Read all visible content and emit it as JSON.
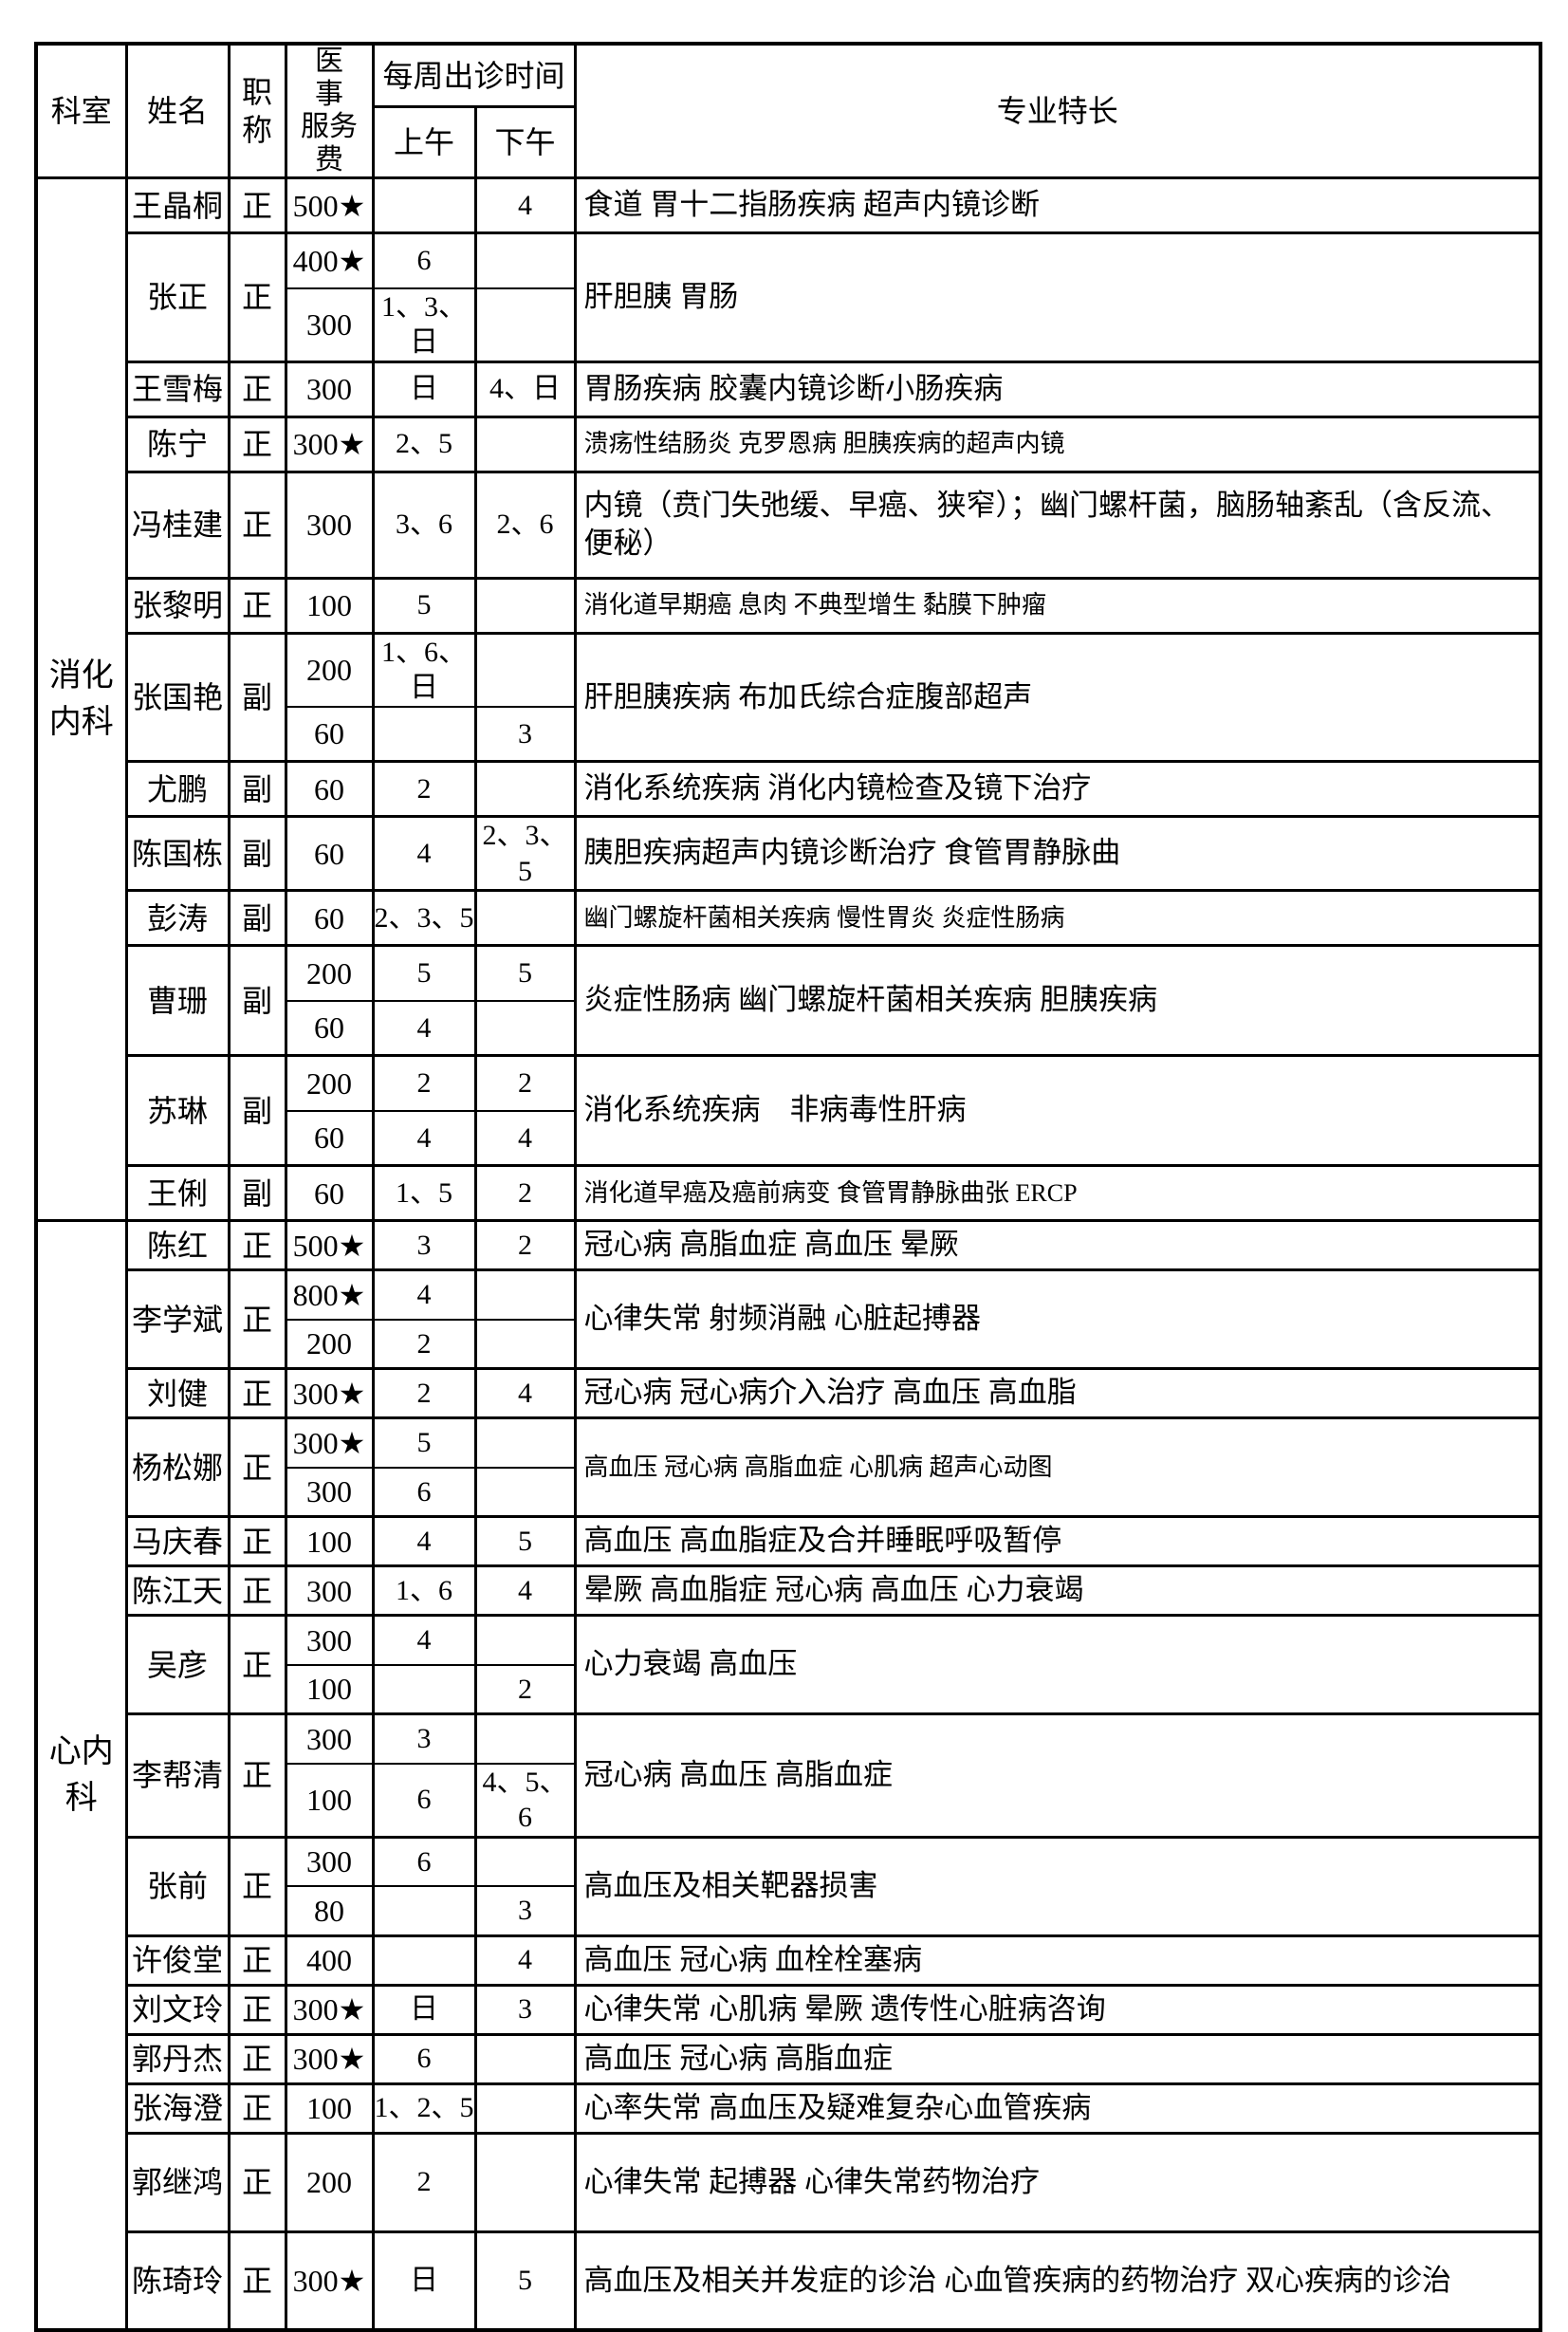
{
  "table": {
    "headers": {
      "department": "科室",
      "name": "姓名",
      "title": "职称",
      "fee_line1": "医 事",
      "fee_line2": "服务费",
      "schedule": "每周出诊时间",
      "morning": "上午",
      "afternoon": "下午",
      "specialty": "专业特长"
    },
    "departments": [
      {
        "name": "消化内科",
        "doctors": [
          {
            "name": "王晶桐",
            "title": "正",
            "rows": [
              {
                "fee": "500★",
                "am": "",
                "pm": "4"
              }
            ],
            "specialty": "食道 胃十二指肠疾病 超声内镜诊断"
          },
          {
            "name": "张正",
            "title": "正",
            "rows": [
              {
                "fee": "400★",
                "am": "6",
                "pm": ""
              },
              {
                "fee": "300",
                "am": "1、3、日",
                "pm": ""
              }
            ],
            "specialty": "肝胆胰 胃肠"
          },
          {
            "name": "王雪梅",
            "title": "正",
            "rows": [
              {
                "fee": "300",
                "am": "日",
                "pm": "4、日"
              }
            ],
            "specialty": "胃肠疾病 胶囊内镜诊断小肠疾病"
          },
          {
            "name": "陈宁",
            "title": "正",
            "rows": [
              {
                "fee": "300★",
                "am": "2、5",
                "pm": ""
              }
            ],
            "specialty": "溃疡性结肠炎 克罗恩病 胆胰疾病的超声内镜",
            "small": true
          },
          {
            "name": "冯桂建",
            "title": "正",
            "rows": [
              {
                "fee": "300",
                "am": "3、6",
                "pm": "2、6"
              }
            ],
            "specialty": "内镜（贲门失弛缓、早癌、狭窄）；幽门螺杆菌，脑肠轴紊乱（含反流、便秘）",
            "tall": true
          },
          {
            "name": "张黎明",
            "title": "正",
            "rows": [
              {
                "fee": "100",
                "am": "5",
                "pm": ""
              }
            ],
            "specialty": "消化道早期癌 息肉 不典型增生 黏膜下肿瘤",
            "small": true
          },
          {
            "name": "张国艳",
            "title": "副",
            "rows": [
              {
                "fee": "200",
                "am": "1、6、日",
                "pm": ""
              },
              {
                "fee": "60",
                "am": "",
                "pm": "3"
              }
            ],
            "specialty": "肝胆胰疾病 布加氏综合症腹部超声"
          },
          {
            "name": "尤鹏",
            "title": "副",
            "rows": [
              {
                "fee": "60",
                "am": "2",
                "pm": ""
              }
            ],
            "specialty": "消化系统疾病 消化内镜检查及镜下治疗"
          },
          {
            "name": "陈国栋",
            "title": "副",
            "rows": [
              {
                "fee": "60",
                "am": "4",
                "pm": "2、3、5"
              }
            ],
            "specialty": "胰胆疾病超声内镜诊断治疗 食管胃静脉曲"
          },
          {
            "name": "彭涛",
            "title": "副",
            "rows": [
              {
                "fee": "60",
                "am": "2、3、5",
                "pm": ""
              }
            ],
            "specialty": "幽门螺旋杆菌相关疾病 慢性胃炎 炎症性肠病",
            "small": true
          },
          {
            "name": "曹珊",
            "title": "副",
            "rows": [
              {
                "fee": "200",
                "am": "5",
                "pm": "5"
              },
              {
                "fee": "60",
                "am": "4",
                "pm": ""
              }
            ],
            "specialty": "炎症性肠病 幽门螺旋杆菌相关疾病 胆胰疾病"
          },
          {
            "name": "苏琳",
            "title": "副",
            "rows": [
              {
                "fee": "200",
                "am": "2",
                "pm": "2"
              },
              {
                "fee": "60",
                "am": "4",
                "pm": "4"
              }
            ],
            "specialty": "消化系统疾病　非病毒性肝病"
          },
          {
            "name": "王俐",
            "title": "副",
            "rows": [
              {
                "fee": "60",
                "am": "1、5",
                "pm": "2"
              }
            ],
            "specialty": "消化道早癌及癌前病变 食管胃静脉曲张 ERCP",
            "small": true
          }
        ]
      },
      {
        "name": "心内科",
        "doctors": [
          {
            "name": "陈红",
            "title": "正",
            "rows": [
              {
                "fee": "500★",
                "am": "3",
                "pm": "2"
              }
            ],
            "specialty": "冠心病 高脂血症 高血压 晕厥"
          },
          {
            "name": "李学斌",
            "title": "正",
            "rows": [
              {
                "fee": "800★",
                "am": "4",
                "pm": ""
              },
              {
                "fee": "200",
                "am": "2",
                "pm": ""
              }
            ],
            "specialty": "心律失常 射频消融 心脏起搏器"
          },
          {
            "name": "刘健",
            "title": "正",
            "rows": [
              {
                "fee": "300★",
                "am": "2",
                "pm": "4"
              }
            ],
            "specialty": "冠心病 冠心病介入治疗 高血压 高血脂"
          },
          {
            "name": "杨松娜",
            "title": "正",
            "rows": [
              {
                "fee": "300★",
                "am": "5",
                "pm": ""
              },
              {
                "fee": "300",
                "am": "6",
                "pm": ""
              }
            ],
            "specialty": "高血压 冠心病 高脂血症 心肌病 超声心动图",
            "small": true
          },
          {
            "name": "马庆春",
            "title": "正",
            "rows": [
              {
                "fee": "100",
                "am": "4",
                "pm": "5"
              }
            ],
            "specialty": "高血压 高血脂症及合并睡眠呼吸暂停"
          },
          {
            "name": "陈江天",
            "title": "正",
            "rows": [
              {
                "fee": "300",
                "am": "1、6",
                "pm": "4"
              }
            ],
            "specialty": "晕厥 高血脂症 冠心病 高血压 心力衰竭"
          },
          {
            "name": "吴彦",
            "title": "正",
            "rows": [
              {
                "fee": "300",
                "am": "4",
                "pm": ""
              },
              {
                "fee": "100",
                "am": "",
                "pm": "2"
              }
            ],
            "specialty": "心力衰竭 高血压"
          },
          {
            "name": "李帮清",
            "title": "正",
            "rows": [
              {
                "fee": "300",
                "am": "3",
                "pm": ""
              },
              {
                "fee": "100",
                "am": "6",
                "pm": "4、5、6"
              }
            ],
            "specialty": "冠心病 高血压 高脂血症"
          },
          {
            "name": "张前",
            "title": "正",
            "rows": [
              {
                "fee": "300",
                "am": "6",
                "pm": ""
              },
              {
                "fee": "80",
                "am": "",
                "pm": "3"
              }
            ],
            "specialty": "高血压及相关靶器损害"
          },
          {
            "name": "许俊堂",
            "title": "正",
            "rows": [
              {
                "fee": "400",
                "am": "",
                "pm": "4"
              }
            ],
            "specialty": "高血压 冠心病 血栓栓塞病"
          },
          {
            "name": "刘文玲",
            "title": "正",
            "rows": [
              {
                "fee": "300★",
                "am": "日",
                "pm": "3"
              }
            ],
            "specialty": "心律失常 心肌病 晕厥 遗传性心脏病咨询"
          },
          {
            "name": "郭丹杰",
            "title": "正",
            "rows": [
              {
                "fee": "300★",
                "am": "6",
                "pm": ""
              }
            ],
            "specialty": "高血压 冠心病 高脂血症"
          },
          {
            "name": "张海澄",
            "title": "正",
            "rows": [
              {
                "fee": "100",
                "am": "1、2、5",
                "pm": ""
              }
            ],
            "specialty": "心率失常 高血压及疑难复杂心血管疾病"
          },
          {
            "name": "郭继鸿",
            "title": "正",
            "rows": [
              {
                "fee": "200",
                "am": "2",
                "pm": ""
              }
            ],
            "specialty": "心律失常 起搏器 心律失常药物治疗",
            "tall": true
          },
          {
            "name": "陈琦玲",
            "title": "正",
            "rows": [
              {
                "fee": "300★",
                "am": "日",
                "pm": "5"
              }
            ],
            "specialty": "高血压及相关并发症的诊治 心血管疾病的药物治疗 双心疾病的诊治",
            "tall": true
          }
        ]
      }
    ]
  }
}
